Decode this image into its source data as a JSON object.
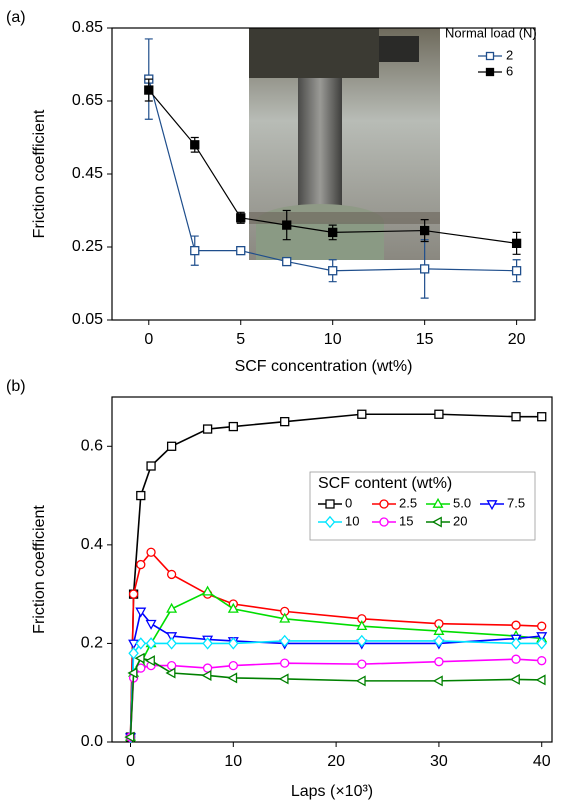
{
  "chart_data": [
    {
      "type": "line",
      "label": "(a)",
      "xlabel": "SCF concentration (wt%)",
      "ylabel": "Friction coefficient",
      "x": [
        0,
        2.5,
        5,
        7.5,
        10,
        15,
        20
      ],
      "xlim": [
        -2,
        21
      ],
      "xticks": [
        0,
        5,
        10,
        15,
        20
      ],
      "ylim": [
        0.05,
        0.85
      ],
      "yticks": [
        0.05,
        0.25,
        0.45,
        0.65,
        0.85
      ],
      "legend_title": "Normal load (N)",
      "legend": "upper right",
      "series": [
        {
          "name": "2",
          "color": "#1f4e8c",
          "marker": "square",
          "filled": false,
          "values": [
            0.71,
            0.24,
            0.24,
            0.21,
            0.185,
            0.19,
            0.185
          ],
          "errors": [
            0.11,
            0.04,
            0.005,
            0.01,
            0.03,
            0.08,
            0.03
          ]
        },
        {
          "name": "6",
          "color": "#000000",
          "marker": "square",
          "filled": true,
          "values": [
            0.68,
            0.53,
            0.33,
            0.31,
            0.29,
            0.295,
            0.26
          ],
          "errors": [
            0.03,
            0.02,
            0.015,
            0.04,
            0.02,
            0.03,
            0.03
          ]
        }
      ]
    },
    {
      "type": "line",
      "label": "(b)",
      "xlabel": "Laps (×10³)",
      "ylabel": "Friction coefficient",
      "x": [
        0,
        0.3,
        1,
        2,
        4,
        7.5,
        10,
        15,
        22.5,
        30,
        37.5,
        40
      ],
      "xlim": [
        -1.8,
        41
      ],
      "xticks": [
        0,
        10,
        20,
        30,
        40
      ],
      "ylim": [
        0,
        0.7
      ],
      "yticks": [
        {
          "value": 0,
          "label": "0.0"
        },
        0.2,
        0.4,
        0.6
      ],
      "legend_title": "SCF content (wt%)",
      "legend": "upper right",
      "series": [
        {
          "name": "0",
          "color": "#000000",
          "marker": "square",
          "filled": false,
          "values": [
            0.01,
            0.3,
            0.5,
            0.56,
            0.6,
            0.635,
            0.64,
            0.65,
            0.665,
            0.665,
            0.66,
            0.66
          ]
        },
        {
          "name": "2.5",
          "color": "#ff0000",
          "marker": "circle",
          "filled": false,
          "values": [
            0.01,
            0.3,
            0.36,
            0.385,
            0.34,
            0.3,
            0.28,
            0.265,
            0.25,
            0.24,
            0.237,
            0.235
          ]
        },
        {
          "name": "5.0",
          "color": "#00dd00",
          "marker": "triangle-up",
          "filled": false,
          "values": [
            0.01,
            0.14,
            0.16,
            0.2,
            0.27,
            0.305,
            0.27,
            0.25,
            0.235,
            0.225,
            0.215,
            0.21
          ]
        },
        {
          "name": "7.5",
          "color": "#0000ff",
          "marker": "triangle-down",
          "filled": false,
          "values": [
            0.01,
            0.2,
            0.265,
            0.24,
            0.215,
            0.208,
            0.205,
            0.2,
            0.2,
            0.2,
            0.21,
            0.215
          ]
        },
        {
          "name": "10",
          "color": "#00e5ff",
          "marker": "diamond",
          "filled": false,
          "values": [
            0.01,
            0.18,
            0.2,
            0.2,
            0.2,
            0.2,
            0.2,
            0.205,
            0.205,
            0.205,
            0.2,
            0.2
          ]
        },
        {
          "name": "15",
          "color": "#ff00ff",
          "marker": "circle",
          "filled": false,
          "values": [
            0.01,
            0.13,
            0.15,
            0.155,
            0.155,
            0.15,
            0.155,
            0.16,
            0.158,
            0.163,
            0.168,
            0.165
          ]
        },
        {
          "name": "20",
          "color": "#008000",
          "marker": "triangle-left",
          "filled": false,
          "values": [
            0.01,
            0.14,
            0.17,
            0.165,
            0.14,
            0.135,
            0.13,
            0.128,
            0.124,
            0.124,
            0.127,
            0.126
          ]
        }
      ]
    }
  ]
}
